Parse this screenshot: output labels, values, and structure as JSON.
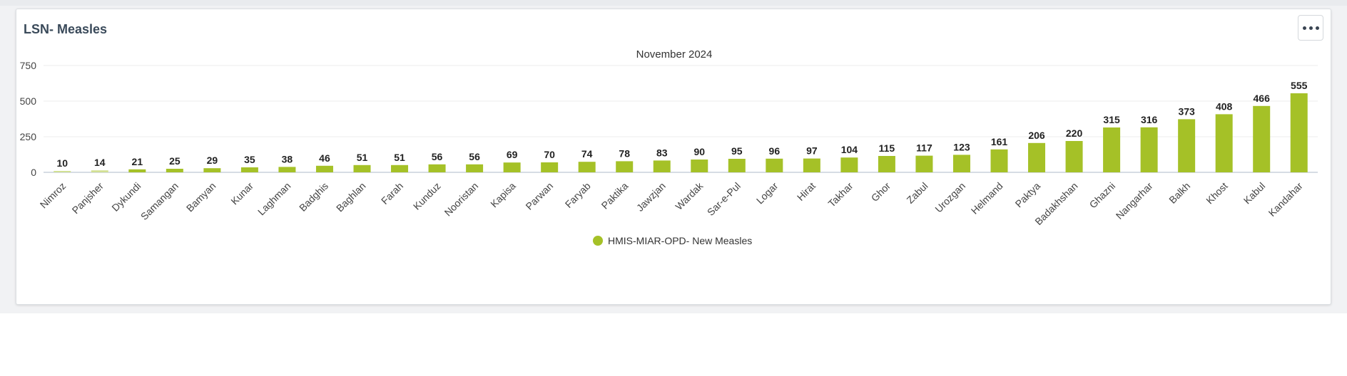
{
  "card": {
    "title": "LSN- Measles",
    "menu_icon": "more-horizontal-icon"
  },
  "chart_data": {
    "type": "bar",
    "title": "",
    "subtitle": "November 2024",
    "xlabel": "",
    "ylabel": "",
    "ylim": [
      0,
      750
    ],
    "yticks": [
      0,
      250,
      500,
      750
    ],
    "grid": true,
    "legend_position": "bottom",
    "categories": [
      "Nimroz",
      "Panjsher",
      "Dykundi",
      "Samangan",
      "Bamyan",
      "Kunar",
      "Laghman",
      "Badghis",
      "Baghlan",
      "Farah",
      "Kunduz",
      "Nooristan",
      "Kapisa",
      "Parwan",
      "Faryab",
      "Paktika",
      "Jawzjan",
      "Wardak",
      "Sar-e-Pul",
      "Logar",
      "Hirat",
      "Takhar",
      "Ghor",
      "Zabul",
      "Urozgan",
      "Helmand",
      "Paktya",
      "Badakhshan",
      "Ghazni",
      "Nangarhar",
      "Balkh",
      "Khost",
      "Kabul",
      "Kandahar"
    ],
    "series": [
      {
        "name": "HMIS-MIAR-OPD- New Measles",
        "color": "#a5c127",
        "values": [
          10,
          14,
          21,
          25,
          29,
          35,
          38,
          46,
          51,
          51,
          56,
          56,
          69,
          70,
          74,
          78,
          83,
          90,
          95,
          96,
          97,
          104,
          115,
          117,
          123,
          161,
          206,
          220,
          315,
          316,
          373,
          408,
          466,
          555
        ]
      }
    ]
  }
}
